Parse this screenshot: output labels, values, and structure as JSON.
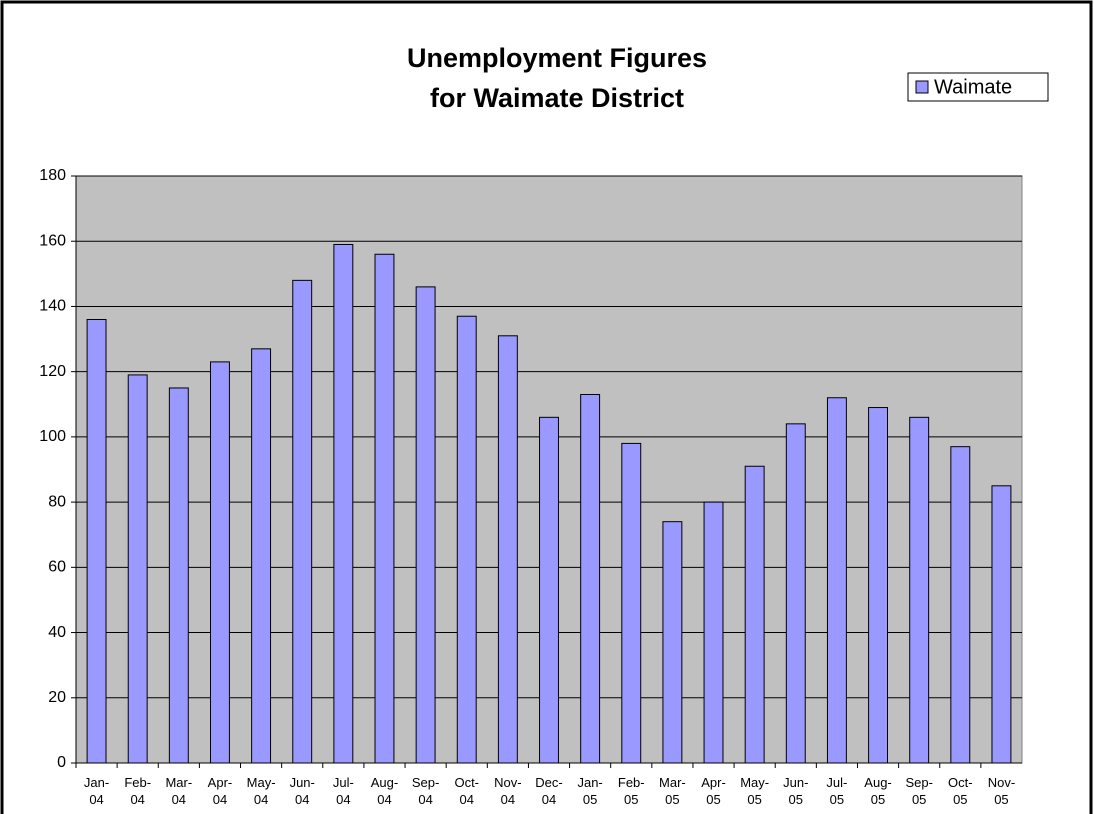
{
  "chart_data": {
    "type": "bar",
    "title": [
      "Unemployment Figures",
      "for Waimate District"
    ],
    "categories": [
      "Jan-04",
      "Feb-04",
      "Mar-04",
      "Apr-04",
      "May-04",
      "Jun-04",
      "Jul-04",
      "Aug-04",
      "Sep-04",
      "Oct-04",
      "Nov-04",
      "Dec-04",
      "Jan-05",
      "Feb-05",
      "Mar-05",
      "Apr-05",
      "May-05",
      "Jun-05",
      "Jul-05",
      "Aug-05",
      "Sep-05",
      "Oct-05",
      "Nov-05"
    ],
    "series": [
      {
        "name": "Waimate",
        "color": "#9999ff",
        "values": [
          136,
          119,
          115,
          123,
          127,
          148,
          159,
          156,
          146,
          137,
          131,
          106,
          113,
          98,
          74,
          80,
          91,
          104,
          112,
          109,
          106,
          97,
          85
        ]
      }
    ],
    "ylim": [
      0,
      180
    ],
    "yticks": [
      0,
      20,
      40,
      60,
      80,
      100,
      120,
      140,
      160,
      180
    ],
    "grid": true,
    "legend": "top-right"
  }
}
